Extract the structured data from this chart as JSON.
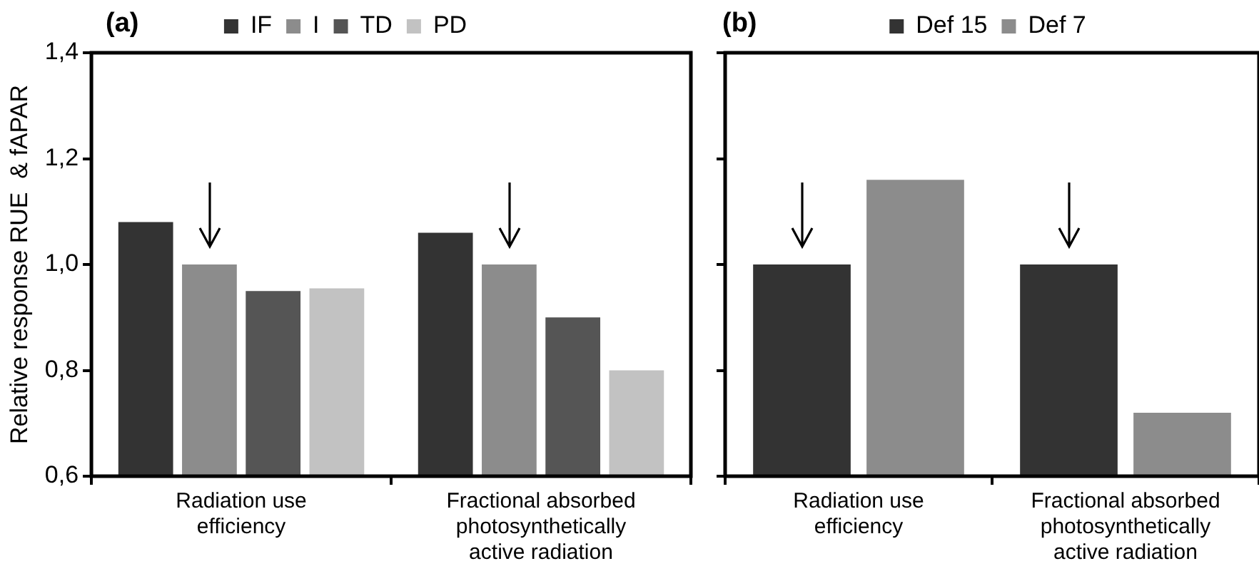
{
  "chart_data": [
    {
      "type": "bar",
      "title": "(a)",
      "ylabel": "Relative response RUE  & fAPAR",
      "categories": [
        "Radiation use efficiency",
        "Fractional absorbed photosynthetically active radiation"
      ],
      "series": [
        {
          "name": "IF",
          "color": "#333333",
          "values": [
            1.08,
            1.06
          ]
        },
        {
          "name": "I",
          "color": "#8c8c8c",
          "values": [
            1.0,
            1.0
          ]
        },
        {
          "name": "TD",
          "color": "#555555",
          "values": [
            0.95,
            0.9
          ]
        },
        {
          "name": "PD",
          "color": "#c2c2c2",
          "values": [
            0.955,
            0.8
          ]
        }
      ],
      "ylim": [
        0.6,
        1.4
      ],
      "yticks": [
        {
          "value": 0.6,
          "label": "0,6"
        },
        {
          "value": 0.8,
          "label": "0,8"
        },
        {
          "value": 1.0,
          "label": "1,0"
        },
        {
          "value": 1.2,
          "label": "1,2"
        },
        {
          "value": 1.4,
          "label": "1,4"
        }
      ],
      "grid": false,
      "legend": "top"
    },
    {
      "type": "bar",
      "title": "(b)",
      "categories": [
        "Radiation use efficiency",
        "Fractional absorbed photosynthetically active radiation"
      ],
      "series": [
        {
          "name": "Def 15",
          "color": "#333333",
          "values": [
            1.0,
            1.0
          ]
        },
        {
          "name": "Def 7",
          "color": "#8c8c8c",
          "values": [
            1.16,
            0.72
          ]
        }
      ],
      "ylim": [
        0.6,
        1.4
      ],
      "yticks": [
        {
          "value": 0.6,
          "label": null
        },
        {
          "value": 0.8,
          "label": null
        },
        {
          "value": 1.0,
          "label": null
        },
        {
          "value": 1.2,
          "label": null
        },
        {
          "value": 1.4,
          "label": null
        }
      ],
      "grid": false,
      "legend": "top",
      "tick_labels": "x"
    }
  ]
}
